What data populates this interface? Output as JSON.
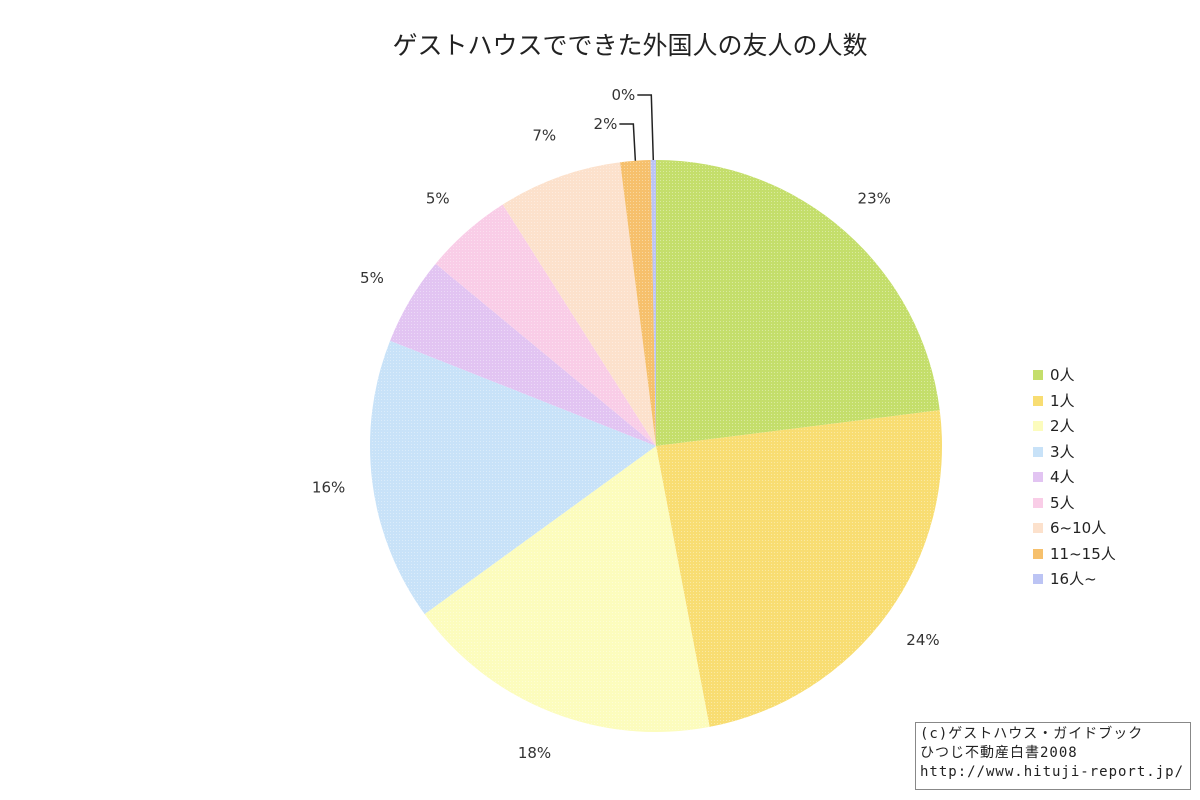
{
  "chart_data": {
    "type": "pie",
    "title": "ゲストハウスでできた外国人の友人の人数",
    "categories": [
      "0人",
      "1人",
      "2人",
      "3人",
      "4人",
      "5人",
      "6~10人",
      "11~15人",
      "16人~"
    ],
    "values": [
      23,
      24,
      18,
      16,
      5,
      5,
      7,
      1.7,
      0.3
    ],
    "labels": [
      "23%",
      "24%",
      "18%",
      "16%",
      "5%",
      "5%",
      "7%",
      "2%",
      "0%"
    ],
    "colors": [
      "#c4de6b",
      "#f8dd72",
      "#fcfcbd",
      "#c8e2f8",
      "#e2c4f2",
      "#f9cde7",
      "#fce1cc",
      "#f6c06c",
      "#bcc4f4"
    ],
    "start_angle": "12 o'clock",
    "direction": "clockwise",
    "legend_position": "right"
  },
  "credit": {
    "line1": "(c)ゲストハウス・ガイドブック",
    "line2": "ひつじ不動産白書2008",
    "line3": "http://www.hituji-report.jp/"
  }
}
